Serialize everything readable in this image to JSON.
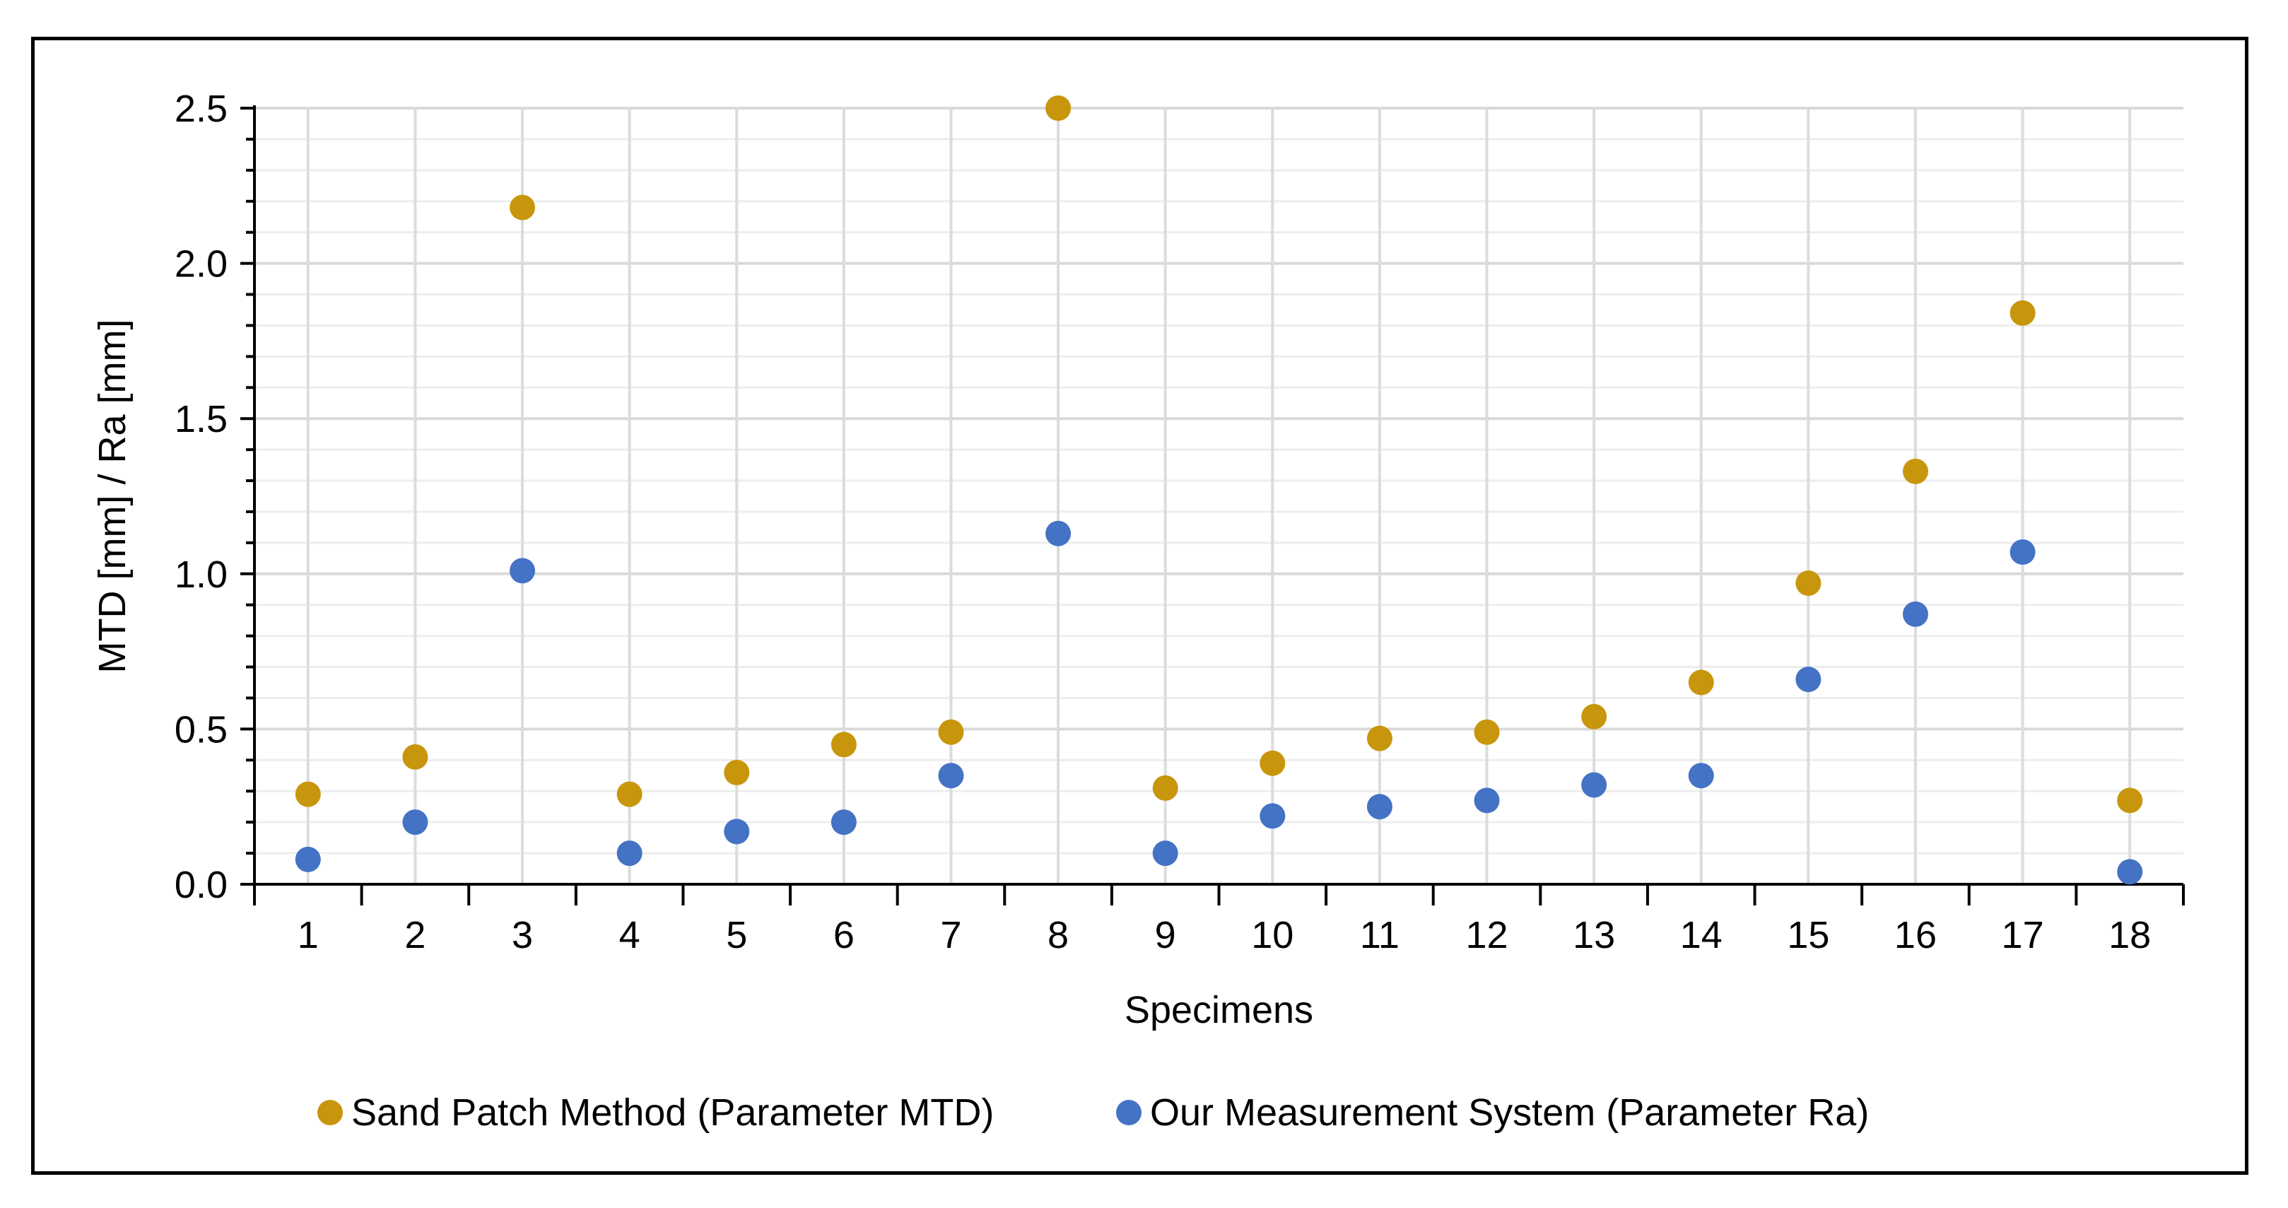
{
  "chart_data": {
    "type": "scatter",
    "title": "",
    "xlabel": "Specimens",
    "ylabel": "MTD [mm] / Ra [mm]",
    "categories": [
      "1",
      "2",
      "3",
      "4",
      "5",
      "6",
      "7",
      "8",
      "9",
      "10",
      "11",
      "12",
      "13",
      "14",
      "15",
      "16",
      "17",
      "18"
    ],
    "ylim": [
      0,
      2.5
    ],
    "yticks": [
      "0.0",
      "0.5",
      "1.0",
      "1.5",
      "2.0",
      "2.5"
    ],
    "grid": true,
    "legend_position": "bottom",
    "series": [
      {
        "name": "Sand Patch Method (Parameter MTD)",
        "color": "#C8960C",
        "values": [
          0.29,
          0.41,
          2.18,
          0.29,
          0.36,
          0.45,
          0.49,
          2.5,
          0.31,
          0.39,
          0.47,
          0.49,
          0.54,
          0.65,
          0.97,
          1.33,
          1.84,
          0.27
        ]
      },
      {
        "name": "Our Measurement System (Parameter Ra)",
        "color": "#4472C4",
        "values": [
          0.08,
          0.2,
          1.01,
          0.1,
          0.17,
          0.2,
          0.35,
          1.13,
          0.1,
          0.22,
          0.25,
          0.27,
          0.32,
          0.35,
          0.66,
          0.87,
          1.07,
          0.04
        ]
      }
    ]
  }
}
